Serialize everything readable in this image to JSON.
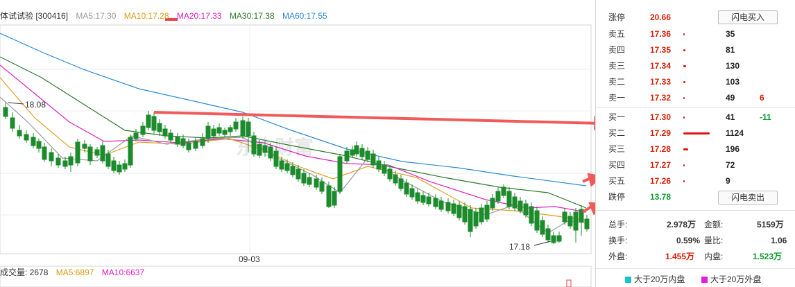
{
  "chart": {
    "legend": {
      "name": "体试试验 [300416]",
      "ma5": "MA5:17.30",
      "ma10": "MA10:17.28",
      "ma20": "MA20:17.33",
      "ma30": "MA30:17.38",
      "ma60": "MA60:17.55"
    },
    "high_label": "18.08",
    "low_label": "17.18",
    "date_label": "09-03",
    "watermark": "东方财富",
    "volume_legend": {
      "title": "成交量: 2678",
      "ma5": "MA5:6897",
      "ma10": "MA10:6637"
    },
    "colors": {
      "up": "#e8434a",
      "down": "#1b8b2b",
      "ma5": "#999999",
      "ma10": "#e0a020",
      "ma20": "#e020c0",
      "ma30": "#2a7a2a",
      "ma60": "#2b8ad6",
      "arrow": "#f05a5a"
    }
  },
  "order_book": {
    "limit_up": {
      "label": "涨停",
      "price": "20.66",
      "button": "闪电买入"
    },
    "asks": [
      {
        "label": "卖五",
        "price": "17.36",
        "volume": "35",
        "change": ""
      },
      {
        "label": "卖四",
        "price": "17.35",
        "volume": "81",
        "change": ""
      },
      {
        "label": "卖三",
        "price": "17.34",
        "volume": "130",
        "change": ""
      },
      {
        "label": "卖二",
        "price": "17.33",
        "volume": "103",
        "change": ""
      },
      {
        "label": "卖一",
        "price": "17.32",
        "volume": "49",
        "change": "6"
      }
    ],
    "bids": [
      {
        "label": "买一",
        "price": "17.30",
        "volume": "41",
        "change": "-11"
      },
      {
        "label": "买二",
        "price": "17.29",
        "volume": "1124",
        "change": ""
      },
      {
        "label": "买三",
        "price": "17.28",
        "volume": "196",
        "change": ""
      },
      {
        "label": "买四",
        "price": "17.27",
        "volume": "72",
        "change": ""
      },
      {
        "label": "买五",
        "price": "17.26",
        "volume": "9",
        "change": ""
      }
    ],
    "limit_down": {
      "label": "跌停",
      "price": "13.78",
      "button": "闪电卖出"
    }
  },
  "stats": {
    "total_hands": {
      "label": "总手:",
      "value": "2.978万"
    },
    "amount": {
      "label": "金额:",
      "value": "5159万"
    },
    "turnover": {
      "label": "换手:",
      "value": "0.59%"
    },
    "volume_ratio": {
      "label": "量比:",
      "value": "1.06"
    },
    "outer": {
      "label": "外盘:",
      "value": "1.455万"
    },
    "inner": {
      "label": "内盘:",
      "value": "1.523万"
    }
  },
  "bottom_legend": {
    "inner_large": "大于20万内盘",
    "outer_large": "大于20万外盘",
    "inner_color": "#19c3c8",
    "outer_color": "#e020e0"
  }
}
